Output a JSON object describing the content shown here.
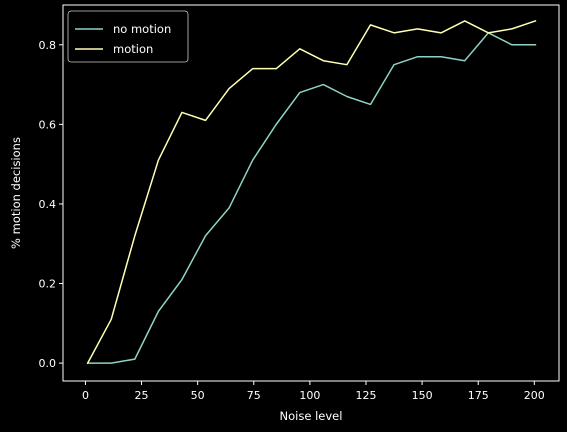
{
  "chart_data": {
    "type": "line",
    "xlabel": "Noise level",
    "ylabel": "% motion decisions",
    "xlim": [
      -10,
      211
    ],
    "ylim": [
      -0.045,
      0.9
    ],
    "xticks": [
      0,
      25,
      50,
      75,
      100,
      125,
      150,
      175,
      200
    ],
    "yticks": [
      0.0,
      0.2,
      0.4,
      0.6,
      0.8
    ],
    "xtick_labels": [
      "0",
      "25",
      "50",
      "75",
      "100",
      "125",
      "150",
      "175",
      "200"
    ],
    "ytick_labels": [
      "0.0",
      "0.2",
      "0.4",
      "0.6",
      "0.8"
    ],
    "grid": false,
    "legend": "top-left",
    "x": [
      1,
      11.5,
      22,
      32.5,
      43,
      53.5,
      64,
      74.5,
      85,
      95.5,
      106,
      116.5,
      127,
      137.5,
      148,
      158.5,
      169,
      179.5,
      190,
      200.5
    ],
    "series": [
      {
        "name": "no motion",
        "color": "#8dd3c7",
        "values": [
          0.0,
          0.0,
          0.01,
          0.13,
          0.21,
          0.32,
          0.39,
          0.51,
          0.6,
          0.68,
          0.7,
          0.67,
          0.65,
          0.75,
          0.77,
          0.77,
          0.76,
          0.83,
          0.8,
          0.8
        ]
      },
      {
        "name": "motion",
        "color": "#ffffb3",
        "values": [
          0.0,
          0.11,
          0.32,
          0.51,
          0.63,
          0.61,
          0.69,
          0.74,
          0.74,
          0.79,
          0.76,
          0.75,
          0.85,
          0.83,
          0.84,
          0.83,
          0.86,
          0.83,
          0.84,
          0.86
        ]
      }
    ]
  }
}
